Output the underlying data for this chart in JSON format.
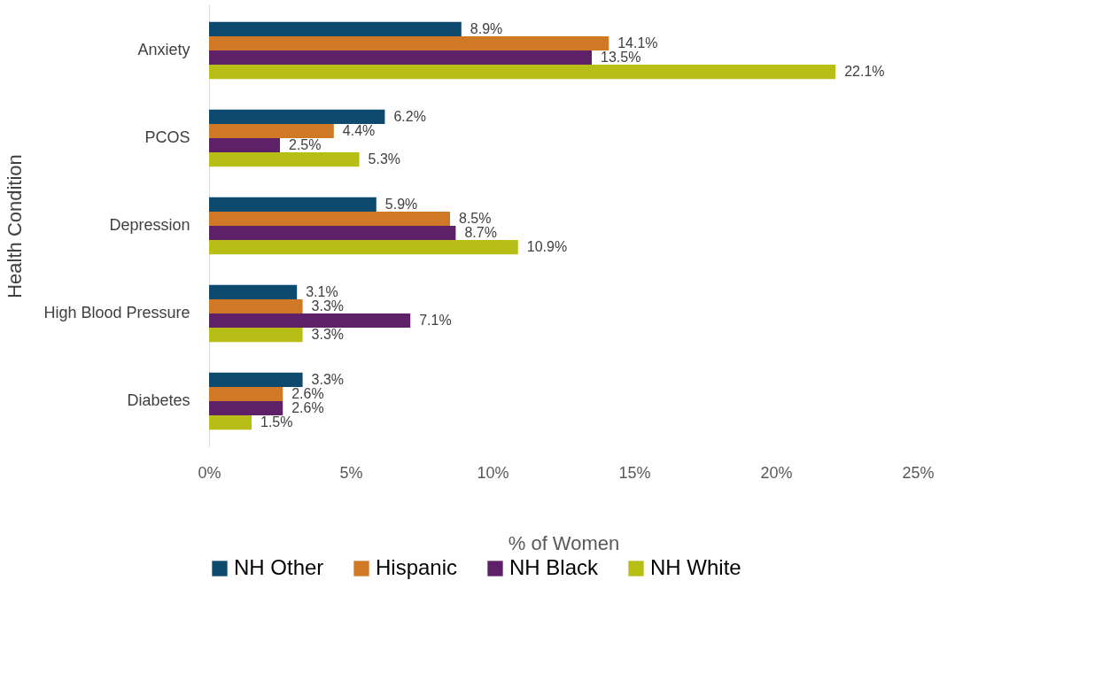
{
  "chart_data": {
    "type": "bar",
    "orientation": "horizontal",
    "xlabel": "% of Women",
    "ylabel": "Health Condition",
    "categories": [
      "Anxiety",
      "PCOS",
      "Depression",
      "High Blood Pressure",
      "Diabetes"
    ],
    "series": [
      {
        "name": "NH Other",
        "color": "#0d4a6e",
        "values": [
          8.9,
          6.2,
          5.9,
          3.1,
          3.3
        ],
        "value_labels": [
          "8.9%",
          "6.2%",
          "5.9%",
          "3.1%",
          "3.3%"
        ]
      },
      {
        "name": "Hispanic",
        "color": "#cf7826",
        "values": [
          14.1,
          4.4,
          8.5,
          3.3,
          2.6
        ],
        "value_labels": [
          "14.1%",
          "4.4%",
          "8.5%",
          "3.3%",
          "2.6%"
        ]
      },
      {
        "name": "NH Black",
        "color": "#5e2167",
        "values": [
          13.5,
          2.5,
          8.7,
          7.1,
          2.6
        ],
        "value_labels": [
          "13.5%",
          "2.5%",
          "8.7%",
          "7.1%",
          "2.6%"
        ]
      },
      {
        "name": "NH White",
        "color": "#b7bf16",
        "values": [
          22.1,
          5.3,
          10.9,
          3.3,
          1.5
        ],
        "value_labels": [
          "22.1%",
          "5.3%",
          "10.9%",
          "3.3%",
          "1.5%"
        ]
      }
    ],
    "xlim": [
      0,
      25
    ],
    "xticks": [
      {
        "value": 0,
        "label": "0%"
      },
      {
        "value": 5,
        "label": "5%"
      },
      {
        "value": 10,
        "label": "10%"
      },
      {
        "value": 15,
        "label": "15%"
      },
      {
        "value": 20,
        "label": "20%"
      },
      {
        "value": 25,
        "label": "25%"
      }
    ],
    "grid": false,
    "legend": "bottom"
  }
}
